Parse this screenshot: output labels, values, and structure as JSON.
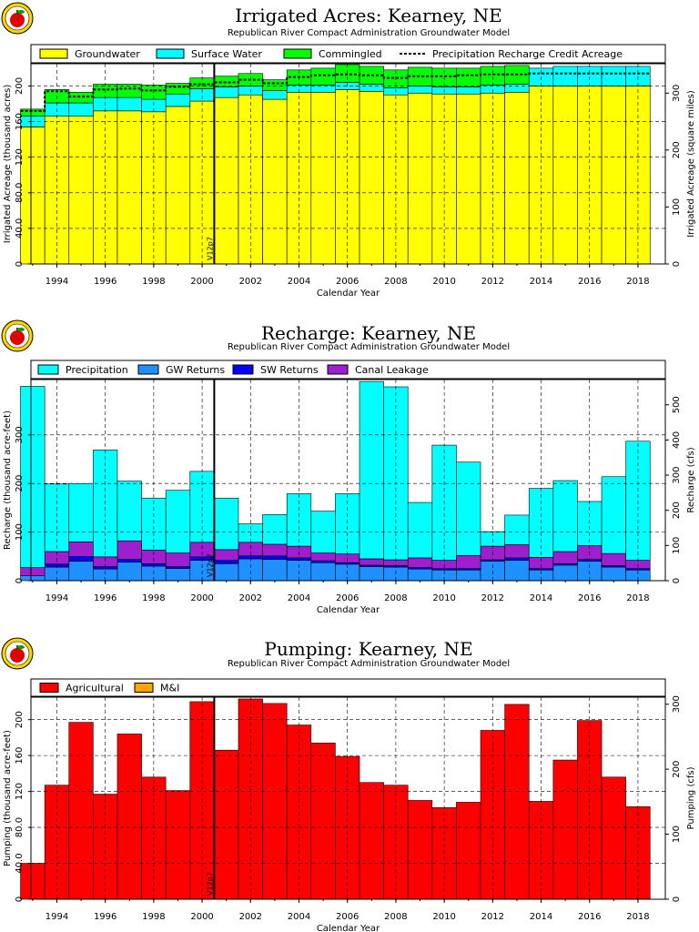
{
  "chart_data": [
    {
      "type": "bar",
      "title": "Irrigated  Acres:  Kearney,  NE",
      "subtitle": "Republican River Compact Administration Groundwater Model",
      "xlabel": "Calendar Year",
      "ylabel": "Irrigated Acreage (thousand acres)",
      "ylabel_right": "Irrigated Acreage (square miles)",
      "stacked": true,
      "categories": [
        1993,
        1994,
        1995,
        1996,
        1997,
        1998,
        1999,
        2000,
        2001,
        2002,
        2003,
        2004,
        2005,
        2006,
        2007,
        2008,
        2009,
        2010,
        2011,
        2012,
        2013,
        2014,
        2015,
        2016,
        2017,
        2018
      ],
      "xticks": [
        "1994",
        "1996",
        "1998",
        "2000",
        "2002",
        "2004",
        "2006",
        "2008",
        "2010",
        "2012",
        "2014",
        "2016",
        "2018"
      ],
      "ylim": [
        0,
        225
      ],
      "yticks": [
        "0",
        "40.0",
        "80.0",
        "120",
        "160",
        "200"
      ],
      "y2lim": [
        0,
        351.6
      ],
      "y2ticks": [
        "0",
        "100",
        "200",
        "300"
      ],
      "marker": {
        "label": "V12p7",
        "x": 2000.5
      },
      "series": [
        {
          "name": "Groundwater",
          "color": "#ffff00",
          "values": [
            154,
            166,
            166,
            172,
            172,
            171,
            177,
            183,
            187,
            190,
            185,
            193,
            193,
            196,
            194,
            190,
            192,
            191,
            191,
            192,
            193,
            200,
            200,
            200,
            200,
            200
          ]
        },
        {
          "name": "Surface Water",
          "color": "#00ffff",
          "values": [
            12,
            15,
            15,
            15,
            15,
            14,
            14,
            14,
            12,
            10,
            10,
            8,
            8,
            8,
            8,
            8,
            8,
            8,
            8,
            9,
            9,
            20,
            22,
            22,
            22,
            22
          ]
        },
        {
          "name": "Commingled",
          "color": "#00ff00",
          "values": [
            8,
            15,
            12,
            15,
            15,
            16,
            12,
            12,
            12,
            14,
            12,
            17,
            19,
            20,
            20,
            20,
            21,
            21,
            21,
            21,
            21,
            0,
            0,
            0,
            0,
            0
          ]
        }
      ],
      "line": {
        "name": "Precipitation Recharge Credit Acreage",
        "values": [
          172,
          194,
          188,
          196,
          197,
          195,
          199,
          202,
          204,
          207,
          203,
          210,
          212,
          213,
          212,
          209,
          211,
          211,
          212,
          213,
          213,
          214,
          214,
          214,
          214,
          214
        ]
      }
    },
    {
      "type": "bar",
      "title": "Recharge:  Kearney,  NE",
      "subtitle": "Republican River Compact Administration Groundwater Model",
      "xlabel": "Calendar Year",
      "ylabel": "Recharge (thousand acre-feet)",
      "ylabel_right": "Recharge (cfs)",
      "stacked": true,
      "categories": [
        1993,
        1994,
        1995,
        1996,
        1997,
        1998,
        1999,
        2000,
        2001,
        2002,
        2003,
        2004,
        2005,
        2006,
        2007,
        2008,
        2009,
        2010,
        2011,
        2012,
        2013,
        2014,
        2015,
        2016,
        2017,
        2018
      ],
      "xticks": [
        "1994",
        "1996",
        "1998",
        "2000",
        "2002",
        "2004",
        "2006",
        "2008",
        "2010",
        "2012",
        "2014",
        "2016",
        "2018"
      ],
      "ylim": [
        0,
        414
      ],
      "yticks": [
        "0",
        "100",
        "200",
        "300"
      ],
      "y2lim": [
        0,
        571.8
      ],
      "y2ticks": [
        "0",
        "100",
        "200",
        "300",
        "400",
        "500"
      ],
      "marker": {
        "label": "V12p7",
        "x": 2000.5
      },
      "series": [
        {
          "name": "GW Returns",
          "color": "#1e90ff",
          "values": [
            10,
            28,
            40,
            24,
            38,
            30,
            25,
            42,
            35,
            45,
            44,
            42,
            37,
            34,
            29,
            28,
            24,
            22,
            22,
            40,
            42,
            22,
            32,
            40,
            28,
            22
          ]
        },
        {
          "name": "SW Returns",
          "color": "#0000ff",
          "values": [
            0,
            6,
            10,
            5,
            6,
            5,
            4,
            7,
            7,
            6,
            7,
            5,
            4,
            3,
            3,
            3,
            3,
            3,
            3,
            3,
            5,
            3,
            3,
            4,
            3,
            3
          ]
        },
        {
          "name": "Canal Leakage",
          "color": "#9d1fd0",
          "values": [
            17,
            26,
            30,
            20,
            38,
            28,
            28,
            30,
            22,
            28,
            24,
            24,
            16,
            18,
            13,
            12,
            20,
            17,
            27,
            28,
            27,
            23,
            25,
            28,
            25,
            17
          ]
        },
        {
          "name": "Precipitation",
          "color": "#00ffff",
          "values": [
            373,
            139,
            120,
            220,
            123,
            107,
            129,
            146,
            106,
            38,
            61,
            108,
            86,
            124,
            365,
            356,
            114,
            237,
            192,
            30,
            61,
            142,
            146,
            91,
            158,
            245
          ]
        }
      ]
    },
    {
      "type": "bar",
      "title": "Pumping:  Kearney,  NE",
      "subtitle": "Republican River Compact Administration Groundwater Model",
      "xlabel": "Calendar Year",
      "ylabel": "Pumping (thousand acre-feet)",
      "ylabel_right": "Pumping (cfs)",
      "stacked": true,
      "categories": [
        1993,
        1994,
        1995,
        1996,
        1997,
        1998,
        1999,
        2000,
        2001,
        2002,
        2003,
        2004,
        2005,
        2006,
        2007,
        2008,
        2009,
        2010,
        2011,
        2012,
        2013,
        2014,
        2015,
        2016,
        2017,
        2018
      ],
      "xticks": [
        "1994",
        "1996",
        "1998",
        "2000",
        "2002",
        "2004",
        "2006",
        "2008",
        "2010",
        "2012",
        "2014",
        "2016",
        "2018"
      ],
      "ylim": [
        0,
        225
      ],
      "yticks": [
        "0",
        "40.0",
        "80.0",
        "120",
        "160",
        "200"
      ],
      "y2lim": [
        0,
        310.8
      ],
      "y2ticks": [
        "0",
        "100",
        "200",
        "300"
      ],
      "marker": {
        "label": "V12p7",
        "x": 2000.5
      },
      "series": [
        {
          "name": "Agricultural",
          "color": "#ff0000",
          "values": [
            40,
            127,
            197,
            117,
            184,
            136,
            121,
            220,
            166,
            223,
            218,
            194,
            174,
            159,
            130,
            127,
            110,
            102,
            108,
            188,
            217,
            109,
            155,
            199,
            136,
            103
          ]
        },
        {
          "name": "M&I",
          "color": "#ffa500",
          "values": [
            0,
            0,
            0,
            0,
            0,
            0,
            0,
            0,
            0,
            0,
            0,
            0,
            0,
            0,
            0,
            0,
            0,
            0,
            0,
            0,
            0,
            0,
            0,
            0,
            0,
            0
          ]
        }
      ]
    }
  ]
}
